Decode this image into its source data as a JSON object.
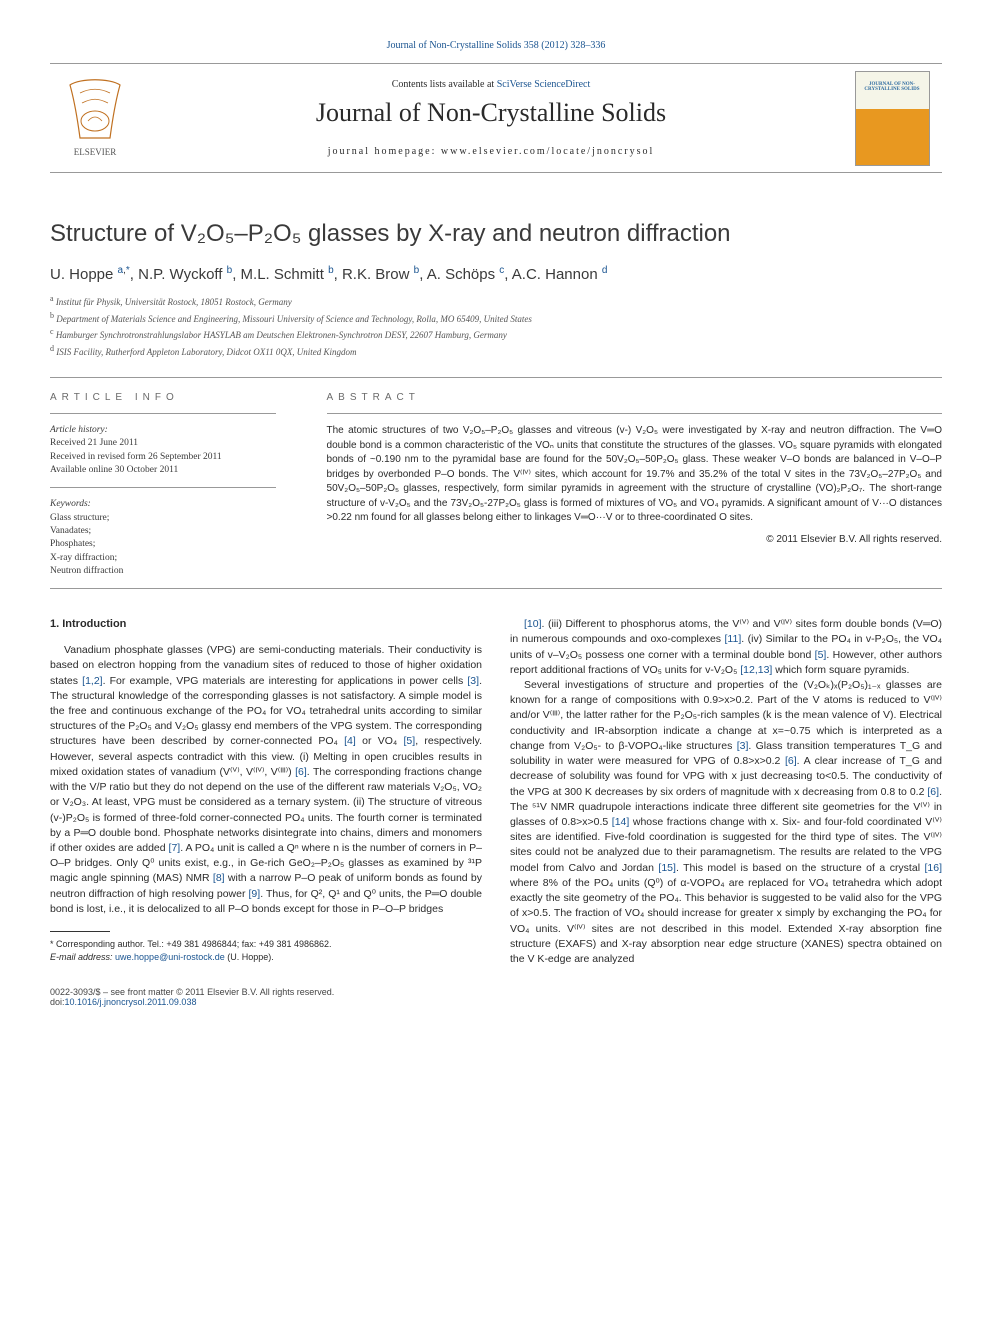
{
  "citation": {
    "text": "Journal of Non-Crystalline Solids 358 (2012) 328–336"
  },
  "masthead": {
    "contents_prefix": "Contents lists available at ",
    "contents_link": "SciVerse ScienceDirect",
    "journal_name": "Journal of Non-Crystalline Solids",
    "homepage_line": "journal homepage: www.elsevier.com/locate/jnoncrysol",
    "cover_text": "JOURNAL OF NON-CRYSTALLINE SOLIDS"
  },
  "title": "Structure of V₂O₅–P₂O₅ glasses by X-ray and neutron diffraction",
  "authors_html": "U. Hoppe <sup><a href='#'>a</a>,<a href='#'>*</a></sup>, N.P. Wyckoff <sup><a href='#'>b</a></sup>, M.L. Schmitt <sup><a href='#'>b</a></sup>, R.K. Brow <sup><a href='#'>b</a></sup>, A. Schöps <sup><a href='#'>c</a></sup>, A.C. Hannon <sup><a href='#'>d</a></sup>",
  "affiliations": [
    "Institut für Physik, Universität Rostock, 18051 Rostock, Germany",
    "Department of Materials Science and Engineering, Missouri University of Science and Technology, Rolla, MO 65409, United States",
    "Hamburger Synchrotronstrahlungslabor HASYLAB am Deutschen Elektronen-Synchrotron DESY, 22607 Hamburg, Germany",
    "ISIS Facility, Rutherford Appleton Laboratory, Didcot OX11 0QX, United Kingdom"
  ],
  "affiliation_markers": [
    "a",
    "b",
    "c",
    "d"
  ],
  "article_info": {
    "heading": "article info",
    "history_label": "Article history:",
    "history": [
      "Received 21 June 2011",
      "Received in revised form 26 September 2011",
      "Available online 30 October 2011"
    ],
    "keywords_label": "Keywords:",
    "keywords": [
      "Glass structure;",
      "Vanadates;",
      "Phosphates;",
      "X-ray diffraction;",
      "Neutron diffraction"
    ]
  },
  "abstract": {
    "heading": "abstract",
    "text": "The atomic structures of two V₂O₅–P₂O₅ glasses and vitreous (v-) V₂O₅ were investigated by X-ray and neutron diffraction. The V═O double bond is a common characteristic of the VOₙ units that constitute the structures of the glasses. VO₅ square pyramids with elongated bonds of ~0.190 nm to the pyramidal base are found for the 50V₂O₅–50P₂O₅ glass. These weaker V–O bonds are balanced in V–O–P bridges by overbonded P–O bonds. The V⁽ᴵⱽ⁾ sites, which account for 19.7% and 35.2% of the total V sites in the 73V₂O₅–27P₂O₅ and 50V₂O₅–50P₂O₅ glasses, respectively, form similar pyramids in agreement with the structure of crystalline (VO)₂P₂O₇. The short-range structure of v-V₂O₅ and the 73V₂O₅-27P₂O₅ glass is formed of mixtures of VO₅ and VO₄ pyramids. A significant amount of V···O distances >0.22 nm found for all glasses belong either to linkages V═O···V or to three-coordinated O sites.",
    "copyright": "© 2011 Elsevier B.V. All rights reserved."
  },
  "section1_heading": "1. Introduction",
  "para1": "Vanadium phosphate glasses (VPG) are semi-conducting materials. Their conductivity is based on electron hopping from the vanadium sites of reduced to those of higher oxidation states [1,2]. For example, VPG materials are interesting for applications in power cells [3]. The structural knowledge of the corresponding glasses is not satisfactory. A simple model is the free and continuous exchange of the PO₄ for VO₄ tetrahedral units according to similar structures of the P₂O₅ and V₂O₅ glassy end members of the VPG system. The corresponding structures have been described by corner-connected PO₄ [4] or VO₄ [5], respectively. However, several aspects contradict with this view. (i) Melting in open crucibles results in mixed oxidation states of vanadium (V⁽ⱽ⁾, V⁽ᴵⱽ⁾, V⁽ᴵᴵᴵ⁾) [6]. The corresponding fractions change with the V/P ratio but they do not depend on the use of the different raw materials V₂O₅, VO₂ or V₂O₃. At least, VPG must be considered as a ternary system. (ii) The structure of vitreous (v-)P₂O₅ is formed of three-fold corner-connected PO₄ units. The fourth corner is terminated by a P═O double bond. Phosphate networks disintegrate into chains, dimers and monomers if other oxides are added [7]. A PO₄ unit is called a Qⁿ where n is the number of corners in P–O–P bridges. Only Q⁰ units exist, e.g., in Ge-rich GeO₂–P₂O₅ glasses as examined by ³¹P magic angle spinning (MAS) NMR [8] with a narrow P–O peak of uniform bonds as found by neutron diffraction of high resolving power [9]. Thus, for Q², Q¹ and Q⁰ units, the P═O double bond is lost, i.e., it is delocalized to all P–O bonds except for those in P–O–P bridges",
  "para2": "[10]. (iii) Different to phosphorus atoms, the V⁽ⱽ⁾ and V⁽ᴵⱽ⁾ sites form double bonds (V═O) in numerous compounds and oxo-complexes [11]. (iv) Similar to the PO₄ in v-P₂O₅, the VO₄ units of v–V₂O₅ possess one corner with a terminal double bond [5]. However, other authors report additional fractions of VO₅ units for v-V₂O₅ [12,13] which form square pyramids.",
  "para3": "Several investigations of structure and properties of the (V₂Oₖ)ₓ(P₂O₅)₁₋ₓ glasses are known for a range of compositions with 0.9>x>0.2. Part of the V atoms is reduced to V⁽ᴵⱽ⁾ and/or V⁽ᴵᴵᴵ⁾, the latter rather for the P₂O₅-rich samples (k is the mean valence of V). Electrical conductivity and IR-absorption indicate a change at x=~0.75 which is interpreted as a change from V₂O₅- to β-VOPO₄-like structures [3]. Glass transition temperatures T_G and solubility in water were measured for VPG of 0.8>x>0.2 [6]. A clear increase of T_G and decrease of solubility was found for VPG with x just decreasing to<0.5. The conductivity of the VPG at 300 K decreases by six orders of magnitude with x decreasing from 0.8 to 0.2 [6]. The ⁵¹V NMR quadrupole interactions indicate three different site geometries for the V⁽ⱽ⁾ in glasses of 0.8>x>0.5 [14] whose fractions change with x. Six- and four-fold coordinated V⁽ⱽ⁾ sites are identified. Five-fold coordination is suggested for the third type of sites. The V⁽ᴵⱽ⁾ sites could not be analyzed due to their paramagnetism. The results are related to the VPG model from Calvo and Jordan [15]. This model is based on the structure of a crystal [16] where 8% of the PO₄ units (Q⁰) of α-VOPO₄ are replaced for VO₄ tetrahedra which adopt exactly the site geometry of the PO₄. This behavior is suggested to be valid also for the VPG of x>0.5. The fraction of VO₄ should increase for greater x simply by exchanging the PO₄ for VO₄ units. V⁽ᴵⱽ⁾ sites are not described in this model. Extended X-ray absorption fine structure (EXAFS) and X-ray absorption near edge structure (XANES) spectra obtained on the V K-edge are analyzed",
  "footnote": {
    "corr": "* Corresponding author. Tel.: +49 381 4986844; fax: +49 381 4986862.",
    "email_label": "E-mail address: ",
    "email": "uwe.hoppe@uni-rostock.de",
    "email_suffix": " (U. Hoppe)."
  },
  "footer": {
    "left1": "0022-3093/$ – see front matter © 2011 Elsevier B.V. All rights reserved.",
    "left2_prefix": "doi:",
    "doi": "10.1016/j.jnoncrysol.2011.09.038"
  },
  "refs": {
    "r1_2": "[1,2]",
    "r3": "[3]",
    "r4": "[4]",
    "r5": "[5]",
    "r6": "[6]",
    "r7": "[7]",
    "r8": "[8]",
    "r9": "[9]",
    "r10": "[10]",
    "r11": "[11]",
    "r12_13": "[12,13]",
    "r14": "[14]",
    "r15": "[15]",
    "r16": "[16]"
  },
  "colors": {
    "link": "#1a5490",
    "text": "#2a2a2a",
    "headinggrey": "#6a6a6a",
    "rule": "#999999",
    "cover_top": "#f5f5e8",
    "cover_bottom": "#e89820"
  },
  "typography": {
    "title_fontsize": 24,
    "journal_fontsize": 26,
    "body_fontsize": 10.5,
    "abstract_fontsize": 10,
    "authors_fontsize": 15,
    "footnote_fontsize": 9
  }
}
